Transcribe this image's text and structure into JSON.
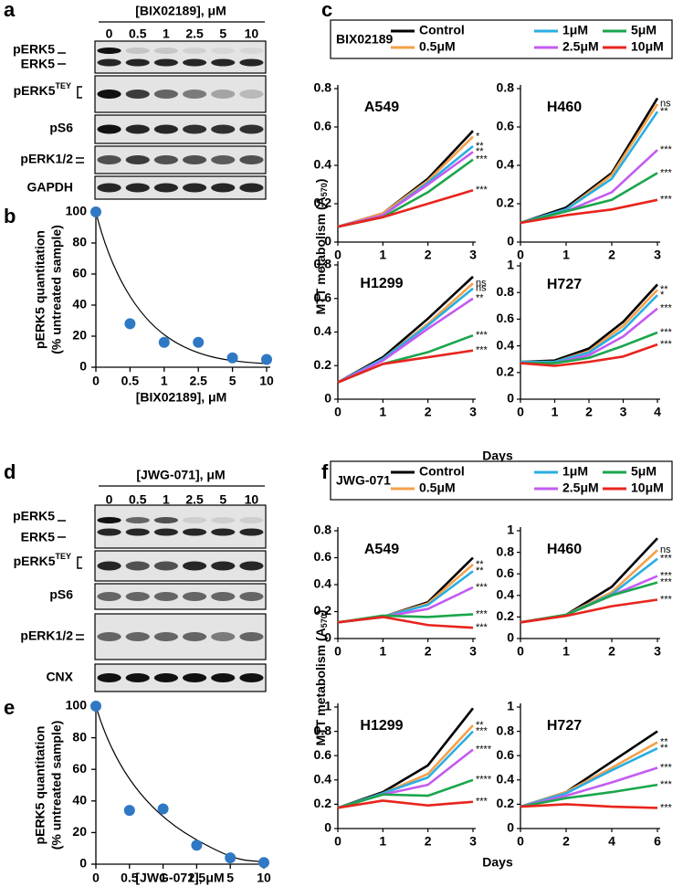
{
  "panel_letters": [
    "a",
    "b",
    "c",
    "d",
    "e",
    "f"
  ],
  "blots": [
    {
      "header": "[BIX02189], μM",
      "lanes": [
        "0",
        "0.5",
        "1",
        "2.5",
        "5",
        "10"
      ],
      "labels": [
        "pERK5",
        "ERK5",
        {
          "text": "pERK5",
          "sup": "TEY"
        },
        "pS6",
        "pERK1/2",
        "GAPDH"
      ]
    },
    {
      "header": "[JWG-071], μM",
      "lanes": [
        "0",
        "0.5",
        "1",
        "2.5",
        "5",
        "10"
      ],
      "labels": [
        "pERK5",
        "ERK5",
        {
          "text": "pERK5",
          "sup": "TEY"
        },
        "pS6",
        "pERK1/2",
        "CNX"
      ]
    }
  ],
  "chart_data": [
    {
      "type": "scatter",
      "color": "#2f78c4",
      "categories": [
        "0",
        "0.5",
        "1",
        "2.5",
        "5",
        "10"
      ],
      "values": [
        100,
        28,
        16,
        16,
        6,
        5
      ],
      "ylim": [
        0,
        100
      ],
      "yticks": [
        0,
        20,
        40,
        60,
        80,
        100
      ],
      "x_label": "[BIX02189], μM",
      "y_label": [
        "pERK5 quantitation",
        "(% untreated sample)"
      ]
    },
    {
      "type": "line",
      "legend_title": "BIX02189",
      "x_label": "Days",
      "y_label": [
        "MTT metabolism (A",
        "570",
        ")"
      ],
      "series": [
        {
          "name": "Control",
          "color": "#000000"
        },
        {
          "name": "0.5μM",
          "color": "#f5a04a"
        },
        {
          "name": "1μM",
          "color": "#29aee3"
        },
        {
          "name": "2.5μM",
          "color": "#c45bf0"
        },
        {
          "name": "5μM",
          "color": "#1aa64c"
        },
        {
          "name": "10μM",
          "color": "#e8241c"
        }
      ],
      "panels": [
        {
          "title": "A549",
          "x": [
            0,
            1,
            2,
            3
          ],
          "xlim": [
            0,
            3
          ],
          "xticks": [
            0,
            1,
            2,
            3
          ],
          "ylim": [
            0,
            0.8
          ],
          "yticks": [
            0,
            0.2,
            0.4,
            0.6,
            0.8
          ],
          "values": [
            [
              0.08,
              0.15,
              0.33,
              0.58
            ],
            [
              0.08,
              0.15,
              0.32,
              0.55
            ],
            [
              0.08,
              0.14,
              0.31,
              0.5
            ],
            [
              0.08,
              0.14,
              0.3,
              0.47
            ],
            [
              0.08,
              0.13,
              0.26,
              0.43
            ],
            [
              0.08,
              0.13,
              0.2,
              0.27
            ]
          ],
          "significance": [
            null,
            "*",
            "**",
            "**",
            "***",
            "***"
          ]
        },
        {
          "title": "H460",
          "x": [
            0,
            1,
            2,
            3
          ],
          "xlim": [
            0,
            3
          ],
          "xticks": [
            0,
            1,
            2,
            3
          ],
          "ylim": [
            0,
            0.8
          ],
          "yticks": [
            0,
            0.2,
            0.4,
            0.6,
            0.8
          ],
          "values": [
            [
              0.1,
              0.18,
              0.36,
              0.75
            ],
            [
              0.1,
              0.17,
              0.35,
              0.72
            ],
            [
              0.1,
              0.17,
              0.33,
              0.68
            ],
            [
              0.1,
              0.16,
              0.26,
              0.48
            ],
            [
              0.1,
              0.16,
              0.22,
              0.36
            ],
            [
              0.1,
              0.14,
              0.17,
              0.22
            ]
          ],
          "significance": [
            null,
            "ns",
            "**",
            "***",
            "***",
            "***"
          ]
        },
        {
          "title": "H1299",
          "x": [
            0,
            1,
            2,
            3
          ],
          "xlim": [
            0,
            3
          ],
          "xticks": [
            0,
            1,
            2,
            3
          ],
          "ylim": [
            0,
            0.8
          ],
          "yticks": [
            0,
            0.2,
            0.4,
            0.6,
            0.8
          ],
          "values": [
            [
              0.1,
              0.25,
              0.48,
              0.73
            ],
            [
              0.1,
              0.24,
              0.45,
              0.69
            ],
            [
              0.1,
              0.24,
              0.44,
              0.66
            ],
            [
              0.1,
              0.23,
              0.42,
              0.6
            ],
            [
              0.1,
              0.21,
              0.28,
              0.38
            ],
            [
              0.1,
              0.21,
              0.25,
              0.29
            ]
          ],
          "significance": [
            null,
            "ns",
            "ns",
            "**",
            "***",
            "***"
          ]
        },
        {
          "title": "H727",
          "x": [
            0,
            1,
            2,
            3,
            4
          ],
          "xlim": [
            0,
            4
          ],
          "xticks": [
            0,
            1,
            2,
            3,
            4
          ],
          "ylim": [
            0,
            1
          ],
          "yticks": [
            0,
            0.2,
            0.4,
            0.6,
            0.8,
            1
          ],
          "values": [
            [
              0.28,
              0.29,
              0.38,
              0.58,
              0.86
            ],
            [
              0.28,
              0.28,
              0.36,
              0.55,
              0.82
            ],
            [
              0.28,
              0.28,
              0.35,
              0.52,
              0.78
            ],
            [
              0.27,
              0.27,
              0.33,
              0.47,
              0.68
            ],
            [
              0.27,
              0.27,
              0.31,
              0.4,
              0.5
            ],
            [
              0.27,
              0.25,
              0.28,
              0.32,
              0.41
            ]
          ],
          "significance": [
            null,
            "**",
            "*",
            "***",
            "***",
            "***"
          ]
        }
      ]
    },
    {
      "type": "scatter",
      "color": "#2f78c4",
      "categories": [
        "0",
        "0.5",
        "1",
        "2.5",
        "5",
        "10"
      ],
      "values": [
        100,
        34,
        35,
        12,
        4,
        1
      ],
      "ylim": [
        0,
        100
      ],
      "yticks": [
        0,
        20,
        40,
        60,
        80,
        100
      ],
      "x_label": "[JWG-071], μM",
      "y_label": [
        "pERK5 quantitation",
        "(% untreated sample)"
      ]
    },
    {
      "type": "line",
      "legend_title": "JWG-071",
      "x_label": "Days",
      "y_label": [
        "MTT metabolism (A",
        "570",
        ")"
      ],
      "series": [
        {
          "name": "Control",
          "color": "#000000"
        },
        {
          "name": "0.5μM",
          "color": "#f5a04a"
        },
        {
          "name": "1μM",
          "color": "#29aee3"
        },
        {
          "name": "2.5μM",
          "color": "#c45bf0"
        },
        {
          "name": "5μM",
          "color": "#1aa64c"
        },
        {
          "name": "10μM",
          "color": "#e8241c"
        }
      ],
      "panels": [
        {
          "title": "A549",
          "x": [
            0,
            1,
            2,
            3
          ],
          "xlim": [
            0,
            3
          ],
          "xticks": [
            0,
            1,
            2,
            3
          ],
          "ylim": [
            0,
            0.8
          ],
          "yticks": [
            0,
            0.2,
            0.4,
            0.6,
            0.8
          ],
          "values": [
            [
              0.12,
              0.16,
              0.27,
              0.6
            ],
            [
              0.12,
              0.16,
              0.26,
              0.55
            ],
            [
              0.12,
              0.16,
              0.25,
              0.5
            ],
            [
              0.12,
              0.16,
              0.22,
              0.38
            ],
            [
              0.12,
              0.17,
              0.16,
              0.18
            ],
            [
              0.12,
              0.16,
              0.1,
              0.08
            ]
          ],
          "significance": [
            null,
            "**",
            "**",
            "***",
            "***",
            "***"
          ]
        },
        {
          "title": "H460",
          "x": [
            0,
            1,
            2,
            3
          ],
          "xlim": [
            0,
            3
          ],
          "xticks": [
            0,
            1,
            2,
            3
          ],
          "ylim": [
            0,
            1
          ],
          "yticks": [
            0,
            0.2,
            0.4,
            0.6,
            0.8,
            1
          ],
          "values": [
            [
              0.15,
              0.22,
              0.48,
              0.93
            ],
            [
              0.15,
              0.22,
              0.43,
              0.82
            ],
            [
              0.15,
              0.22,
              0.41,
              0.74
            ],
            [
              0.15,
              0.22,
              0.4,
              0.58
            ],
            [
              0.15,
              0.22,
              0.4,
              0.52
            ],
            [
              0.15,
              0.21,
              0.3,
              0.36
            ]
          ],
          "significance": [
            null,
            "ns",
            "***",
            "***",
            "***",
            "***"
          ]
        },
        {
          "title": "H1299",
          "x": [
            0,
            1,
            2,
            3
          ],
          "xlim": [
            0,
            3
          ],
          "xticks": [
            0,
            1,
            2,
            3
          ],
          "ylim": [
            0,
            1
          ],
          "yticks": [
            0,
            0.2,
            0.4,
            0.6,
            0.8,
            1
          ],
          "values": [
            [
              0.17,
              0.3,
              0.52,
              0.99
            ],
            [
              0.17,
              0.29,
              0.45,
              0.85
            ],
            [
              0.17,
              0.29,
              0.42,
              0.8
            ],
            [
              0.17,
              0.28,
              0.36,
              0.65
            ],
            [
              0.17,
              0.28,
              0.27,
              0.4
            ],
            [
              0.17,
              0.23,
              0.19,
              0.22
            ]
          ],
          "significance": [
            null,
            "**",
            "***",
            "****",
            "****",
            "***"
          ]
        },
        {
          "title": "H727",
          "x": [
            0,
            2,
            4,
            6
          ],
          "xlim": [
            0,
            6
          ],
          "xticks": [
            0,
            2,
            4,
            6
          ],
          "ylim": [
            0,
            1
          ],
          "yticks": [
            0,
            0.2,
            0.4,
            0.6,
            0.8,
            1
          ],
          "values": [
            [
              0.18,
              0.3,
              0.55,
              0.8
            ],
            [
              0.18,
              0.3,
              0.5,
              0.71
            ],
            [
              0.18,
              0.29,
              0.48,
              0.66
            ],
            [
              0.18,
              0.27,
              0.38,
              0.5
            ],
            [
              0.18,
              0.25,
              0.3,
              0.36
            ],
            [
              0.18,
              0.2,
              0.18,
              0.17
            ]
          ],
          "significance": [
            null,
            "**",
            "**",
            "***",
            "***",
            "***"
          ]
        }
      ]
    }
  ]
}
